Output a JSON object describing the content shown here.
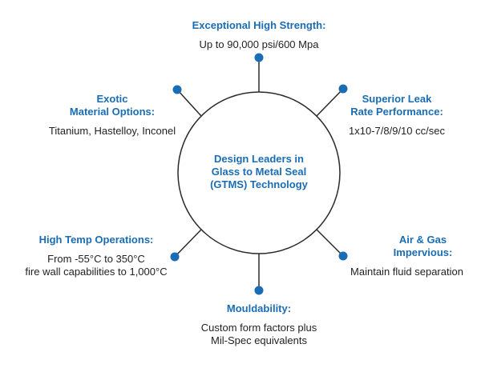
{
  "colors": {
    "accent": "#1a6db5",
    "line": "#2a2a2a"
  },
  "center": {
    "lines": [
      "Design Leaders in",
      "Glass to Metal Seal",
      "(GTMS) Technology"
    ]
  },
  "features": [
    {
      "title": [
        "Exceptional High Strength:"
      ],
      "body": [
        "Up to 90,000 psi/600 Mpa"
      ]
    },
    {
      "title": [
        "Superior Leak",
        "Rate Performance:"
      ],
      "body": [
        "1x10-7/8/9/10 cc/sec"
      ]
    },
    {
      "title": [
        "Air & Gas",
        "Impervious:"
      ],
      "body": [
        "Maintain fluid separation"
      ]
    },
    {
      "title": [
        "Mouldability:"
      ],
      "body": [
        "Custom form factors plus",
        "Mil-Spec equivalents"
      ]
    },
    {
      "title": [
        "High Temp Operations:"
      ],
      "body": [
        "From -55°C to 350°C",
        "fire wall capabilities to 1,000°C"
      ]
    },
    {
      "title": [
        "Exotic",
        "Material Options:"
      ],
      "body": [
        "Titanium, Hastelloy, Inconel"
      ]
    }
  ]
}
